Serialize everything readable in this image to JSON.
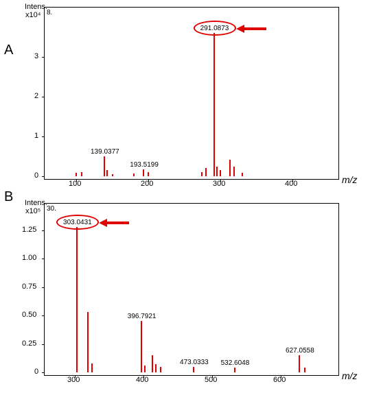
{
  "panels": {
    "A": {
      "label": "A",
      "y_axis_label_top": "Intens.",
      "y_axis_exponent": "x10⁴",
      "corner_num": "8.",
      "y_ticks": [
        "0",
        "1",
        "2",
        "3"
      ],
      "x_ticks": [
        "100",
        "200",
        "300",
        "400"
      ],
      "x_axis_label": "m/z",
      "x_range": [
        60,
        460
      ],
      "y_range": [
        0,
        4.0
      ],
      "peaks": [
        {
          "mz": 100,
          "intens": 0.08
        },
        {
          "mz": 108,
          "intens": 0.1
        },
        {
          "mz": 139.0377,
          "intens": 0.5,
          "label": "139.0377"
        },
        {
          "mz": 143,
          "intens": 0.15
        },
        {
          "mz": 150,
          "intens": 0.05
        },
        {
          "mz": 180,
          "intens": 0.07
        },
        {
          "mz": 193.5199,
          "intens": 0.18,
          "label": "193.5199"
        },
        {
          "mz": 200,
          "intens": 0.1
        },
        {
          "mz": 274,
          "intens": 0.1
        },
        {
          "mz": 280,
          "intens": 0.2
        },
        {
          "mz": 291.0873,
          "intens": 3.6,
          "label": "291.0873",
          "highlight": true
        },
        {
          "mz": 295,
          "intens": 0.25
        },
        {
          "mz": 300,
          "intens": 0.15
        },
        {
          "mz": 313,
          "intens": 0.42
        },
        {
          "mz": 319,
          "intens": 0.25
        },
        {
          "mz": 330,
          "intens": 0.08
        }
      ]
    },
    "B": {
      "label": "B",
      "y_axis_label_top": "Intens.",
      "y_axis_exponent": "x10⁵",
      "corner_num": "30.",
      "y_ticks": [
        "0",
        "0.25",
        "0.50",
        "0.75",
        "1.00",
        "1.25"
      ],
      "x_ticks": [
        "300",
        "400",
        "500",
        "600"
      ],
      "x_axis_label": "m/z",
      "x_range": [
        260,
        680
      ],
      "y_range": [
        0,
        1.4
      ],
      "peaks": [
        {
          "mz": 303.0431,
          "intens": 1.28,
          "label": "303.0431",
          "highlight": true
        },
        {
          "mz": 319,
          "intens": 0.53
        },
        {
          "mz": 325,
          "intens": 0.08
        },
        {
          "mz": 396.7921,
          "intens": 0.45,
          "label": "396.7921"
        },
        {
          "mz": 402,
          "intens": 0.06
        },
        {
          "mz": 413,
          "intens": 0.15
        },
        {
          "mz": 418,
          "intens": 0.07
        },
        {
          "mz": 425,
          "intens": 0.05
        },
        {
          "mz": 473.0333,
          "intens": 0.05,
          "label": "473.0333"
        },
        {
          "mz": 532.6048,
          "intens": 0.04,
          "label": "532.6048"
        },
        {
          "mz": 627.0558,
          "intens": 0.15,
          "label": "627.0558"
        },
        {
          "mz": 635,
          "intens": 0.04
        }
      ]
    }
  },
  "colors": {
    "peak": "#e00000",
    "highlight": "#e00000",
    "axis": "#000000",
    "bg": "#ffffff"
  }
}
